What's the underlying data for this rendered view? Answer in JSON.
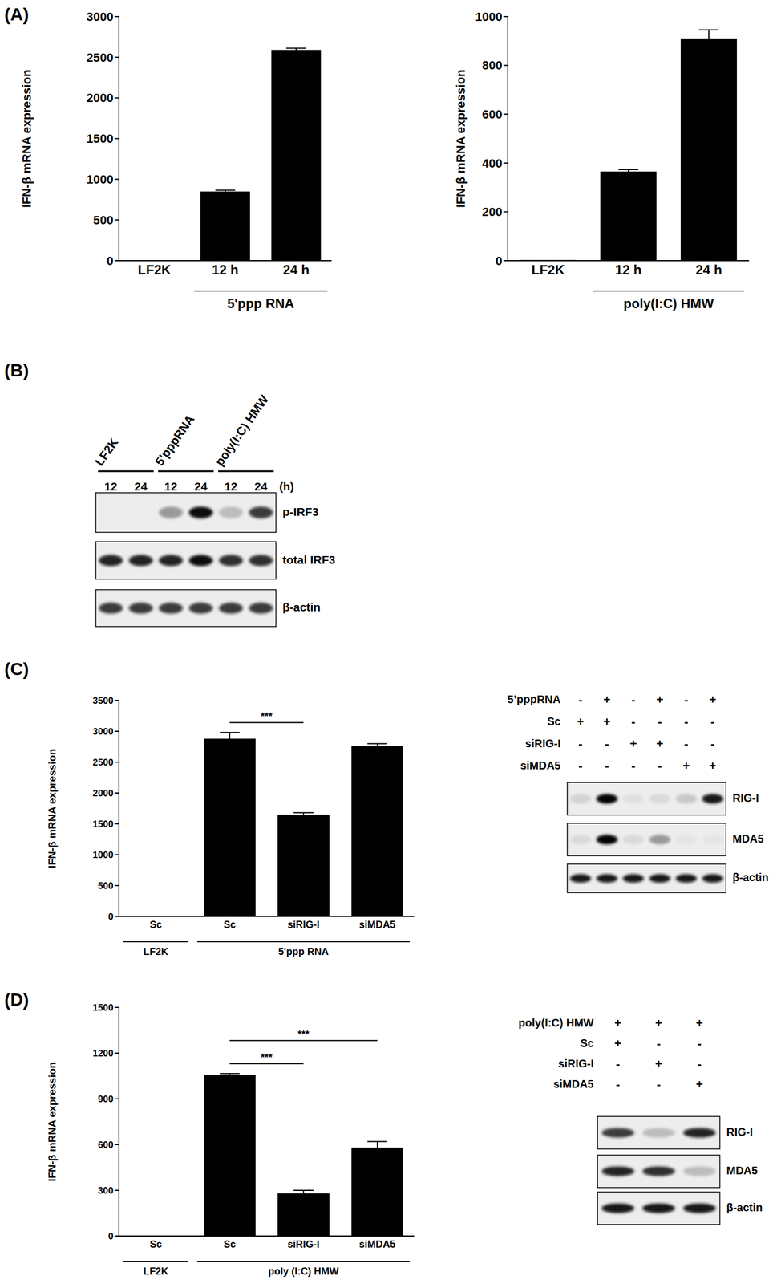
{
  "panel_labels": [
    "(A)",
    "(B)",
    "(C)",
    "(D)"
  ],
  "chart_data": [
    {
      "type": "bar",
      "ylabel": "IFN-β mRNA expression",
      "categories": [
        "LF2K",
        "12 h",
        "24 h"
      ],
      "values": [
        0,
        850,
        2590
      ],
      "errors": [
        0,
        15,
        20
      ],
      "color": "#000000",
      "ylim": [
        0,
        3000
      ],
      "yticks": [
        0,
        500,
        1000,
        1500,
        2000,
        2500,
        3000
      ],
      "groups": [
        {
          "label": "5'ppp RNA",
          "from": 1,
          "to": 2
        }
      ]
    },
    {
      "type": "bar",
      "ylabel": "IFN-β mRNA expression",
      "categories": [
        "LF2K",
        "12 h",
        "24 h"
      ],
      "values": [
        3,
        365,
        910
      ],
      "errors": [
        0,
        8,
        35
      ],
      "color": "#000000",
      "ylim": [
        0,
        1000
      ],
      "yticks": [
        0,
        200,
        400,
        600,
        800,
        1000
      ],
      "groups": [
        {
          "label": "poly(I:C) HMW",
          "from": 1,
          "to": 2
        }
      ]
    },
    {
      "type": "bar",
      "ylabel": "IFN-β mRNA expression",
      "categories": [
        "Sc",
        "Sc",
        "siRIG-I",
        "siMDA5"
      ],
      "values": [
        0,
        2880,
        1650,
        2760
      ],
      "errors": [
        0,
        100,
        30,
        40
      ],
      "color": "#000000",
      "ylim": [
        0,
        3500
      ],
      "yticks": [
        0,
        500,
        1000,
        1500,
        2000,
        2500,
        3000,
        3500
      ],
      "groups": [
        {
          "label": "LF2K",
          "from": 0,
          "to": 0
        },
        {
          "label": "5'ppp RNA",
          "from": 1,
          "to": 3
        }
      ],
      "significance": [
        {
          "label": "***",
          "from": 1,
          "to": 2
        }
      ]
    },
    {
      "type": "bar",
      "ylabel": "IFN-β mRNA expression",
      "categories": [
        "Sc",
        "Sc",
        "siRIG-I",
        "siMDA5"
      ],
      "values": [
        0,
        1055,
        280,
        580
      ],
      "errors": [
        0,
        10,
        20,
        40
      ],
      "color": "#000000",
      "ylim": [
        0,
        1500
      ],
      "yticks": [
        0,
        300,
        600,
        900,
        1200,
        1500
      ],
      "groups": [
        {
          "label": "LF2K",
          "from": 0,
          "to": 0
        },
        {
          "label": "poly (I:C) HMW",
          "from": 1,
          "to": 3
        }
      ],
      "significance": [
        {
          "label": "***",
          "from": 1,
          "to": 2
        },
        {
          "label": "***",
          "from": 1,
          "to": 3
        }
      ]
    }
  ],
  "blots": [
    {
      "groups": [
        {
          "label": "LF2K",
          "from": 0,
          "to": 1
        },
        {
          "label": "5’pppRNA",
          "from": 2,
          "to": 3
        },
        {
          "label": "poly(I:C) HMW",
          "from": 4,
          "to": 5
        }
      ],
      "lanes": [
        "12",
        "24",
        "12",
        "24",
        "12",
        "24"
      ],
      "lane_unit": "(h)",
      "rows": [
        {
          "label": "p-IRF3",
          "bands": [
            0,
            0,
            0.35,
            0.95,
            0.2,
            0.75
          ]
        },
        {
          "label": "total IRF3",
          "bands": [
            0.85,
            0.85,
            0.85,
            0.95,
            0.8,
            0.8
          ]
        },
        {
          "label": "β-actin",
          "bands": [
            0.75,
            0.75,
            0.75,
            0.75,
            0.75,
            0.75
          ]
        }
      ]
    },
    {
      "conditions": [
        {
          "label": "5’pppRNA",
          "marks": [
            "-",
            "+",
            "-",
            "+",
            "-",
            "+"
          ]
        },
        {
          "label": "Sc",
          "marks": [
            "+",
            "+",
            "-",
            "-",
            "-",
            "-"
          ]
        },
        {
          "label": "siRIG-I",
          "marks": [
            "-",
            "-",
            "+",
            "+",
            "-",
            "-"
          ]
        },
        {
          "label": "siMDA5",
          "marks": [
            "-",
            "-",
            "-",
            "-",
            "+",
            "+"
          ]
        }
      ],
      "rows": [
        {
          "label": "RIG-I",
          "bands": [
            0.1,
            1,
            0.05,
            0.08,
            0.15,
            0.9
          ]
        },
        {
          "label": "MDA5",
          "bands": [
            0.08,
            1,
            0.08,
            0.35,
            0.03,
            0.03
          ]
        },
        {
          "label": "β-actin",
          "bands": [
            0.9,
            0.9,
            0.9,
            0.9,
            0.9,
            0.9
          ]
        }
      ]
    },
    {
      "conditions": [
        {
          "label": "poly(I:C) HMW",
          "marks": [
            "+",
            "+",
            "+"
          ]
        },
        {
          "label": "Sc",
          "marks": [
            "+",
            "-",
            "-"
          ]
        },
        {
          "label": "siRIG-I",
          "marks": [
            "-",
            "+",
            "-"
          ]
        },
        {
          "label": "siMDA5",
          "marks": [
            "-",
            "-",
            "+"
          ]
        }
      ],
      "rows": [
        {
          "label": "RIG-I",
          "bands": [
            0.75,
            0.2,
            0.85
          ]
        },
        {
          "label": "MDA5",
          "bands": [
            0.85,
            0.8,
            0.2
          ]
        },
        {
          "label": "β-actin",
          "bands": [
            0.9,
            0.9,
            0.9
          ]
        }
      ]
    }
  ]
}
